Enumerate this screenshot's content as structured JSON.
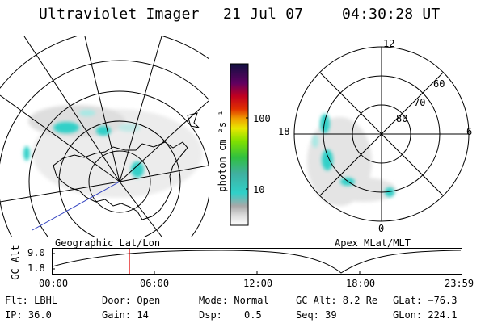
{
  "header": {
    "title": "Ultraviolet Imager",
    "date": "21 Jul 07",
    "time": "04:30:28 UT"
  },
  "panels": {
    "geo_label": "Geographic Lat/Lon",
    "apex_label": "Apex MLat/MLT"
  },
  "colorbar": {
    "unit_label": "photon cm⁻²s⁻¹",
    "tick_100": "100",
    "tick_10": "10"
  },
  "apex": {
    "mlt_12": "12",
    "mlt_18": "18",
    "mlt_6": "6",
    "mlt_0": "0",
    "lat_60": "60",
    "lat_70": "70",
    "lat_80": "80"
  },
  "altitude_plot": {
    "ylabel": "GC Alt",
    "y_max": "9.0",
    "y_min": "1.8",
    "x_ticks": [
      "00:00",
      "06:00",
      "12:00",
      "18:00",
      "23:59"
    ],
    "current_fraction": 0.188
  },
  "info": {
    "filter": "Flt: LBHL",
    "ip": "IP: 36.0",
    "door": "Door: Open",
    "gain": "Gain: 14",
    "mode": "Mode: Normal",
    "dsp_label": "Dsp:",
    "dsp_value": "0.5",
    "gc_alt": "GC Alt: 8.2 Re",
    "seq": "Seq: 39",
    "glat": "GLat: −76.3",
    "glon": "GLon: 224.1"
  },
  "colors": {
    "grid": "#000000",
    "blue_line": "#3040c0",
    "red_marker": "#e00000",
    "aurora_cyan": "#30d0c8"
  }
}
